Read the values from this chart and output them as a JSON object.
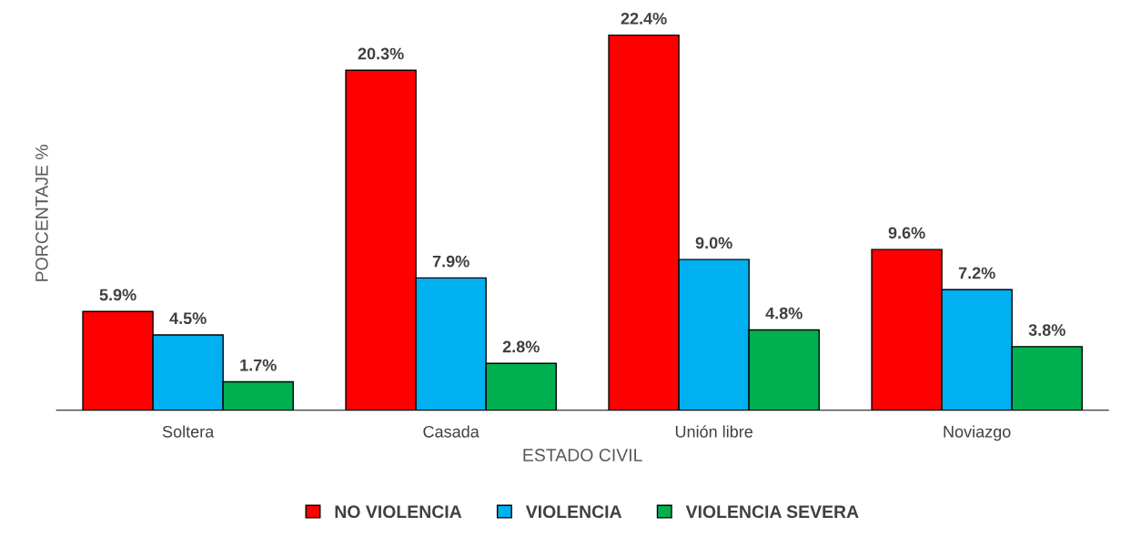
{
  "chart_data": {
    "type": "bar",
    "xlabel": "ESTADO CIVIL",
    "ylabel": "PORCENTAJE %",
    "categories": [
      "Soltera",
      "Casada",
      "Unión libre",
      "Noviazgo"
    ],
    "series": [
      {
        "name": "NO VIOLENCIA",
        "color": "#ff0000",
        "values": [
          5.9,
          20.3,
          22.4,
          9.6
        ],
        "value_labels": [
          "5.9%",
          "20.3%",
          "22.4%",
          "9.6%"
        ]
      },
      {
        "name": "VIOLENCIA",
        "color": "#00b0f0",
        "values": [
          4.5,
          7.9,
          9.0,
          7.2
        ],
        "value_labels": [
          "4.5%",
          "7.9%",
          "9.0%",
          "7.2%"
        ]
      },
      {
        "name": "VIOLENCIA SEVERA",
        "color": "#00b050",
        "values": [
          1.7,
          2.8,
          4.8,
          3.8
        ],
        "value_labels": [
          "1.7%",
          "2.8%",
          "4.8%",
          "3.8%"
        ]
      }
    ],
    "legend": "bottom",
    "tick_labels": "x",
    "grid": false
  }
}
